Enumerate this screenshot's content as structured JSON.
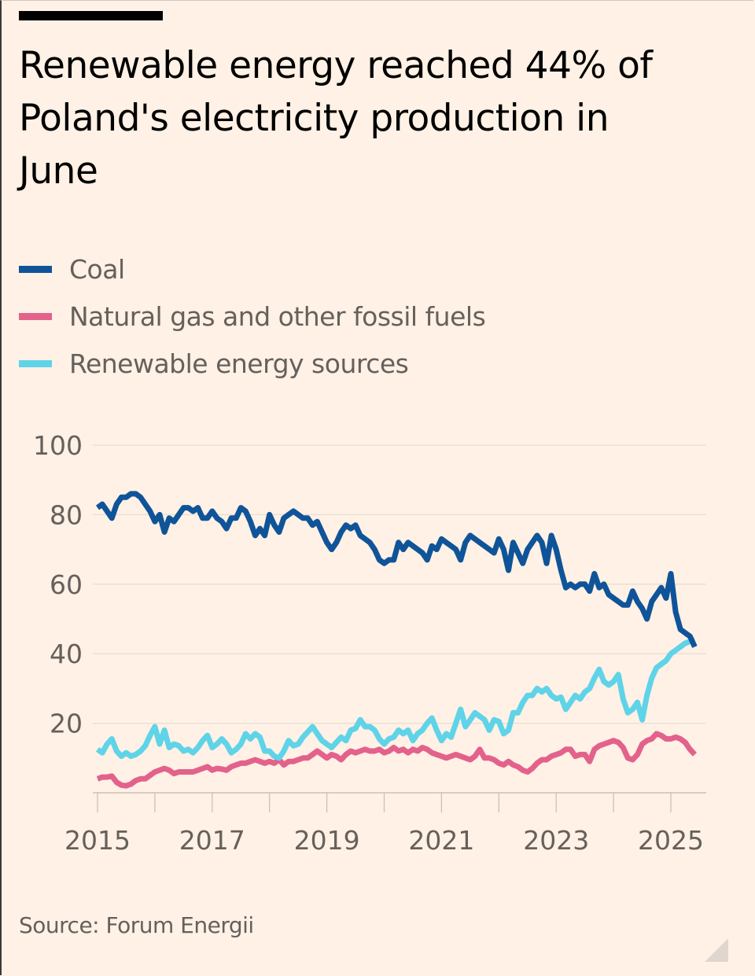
{
  "header": {
    "title": "Renewable energy reached 44% of Poland's electricity production in June"
  },
  "legend": [
    {
      "label": "Coal",
      "color": "#0f5499"
    },
    {
      "label": "Natural gas and other fossil fuels",
      "color": "#e3628c"
    },
    {
      "label": "Renewable energy sources",
      "color": "#5fd3e8"
    }
  ],
  "source": "Source: Forum Energii",
  "chart_data": {
    "type": "line",
    "title": "Renewable energy reached 44% of Poland's electricity production in June",
    "xlabel": "",
    "ylabel": "",
    "x_start": "2015-01",
    "x_end": "2025-06",
    "x_frequency": "monthly",
    "xlim": [
      2015,
      2025.6
    ],
    "ylim": [
      0,
      100
    ],
    "yticks": [
      20,
      40,
      60,
      80,
      100
    ],
    "xticks": [
      2015,
      2016,
      2017,
      2018,
      2019,
      2020,
      2021,
      2022,
      2023,
      2024,
      2025
    ],
    "xtick_labels": [
      "2015",
      "2017",
      "2019",
      "2021",
      "2023",
      "2025"
    ],
    "grid": true,
    "legend_position": "top-left",
    "series": [
      {
        "name": "Coal",
        "color": "#0f5499",
        "values": [
          82,
          83,
          81,
          79,
          83,
          85,
          85,
          86,
          86,
          85,
          83,
          81,
          78,
          80,
          75,
          79,
          78,
          80,
          82,
          82,
          81,
          82,
          79,
          79,
          81,
          79,
          78,
          76,
          79,
          79,
          82,
          81,
          78,
          74,
          76,
          74,
          80,
          77,
          75,
          79,
          80,
          81,
          80,
          79,
          79,
          77,
          78,
          75,
          72,
          70,
          72,
          75,
          77,
          76,
          77,
          74,
          73,
          72,
          70,
          67,
          66,
          67,
          67,
          72,
          70,
          72,
          71,
          70,
          69,
          67,
          71,
          70,
          73,
          72,
          71,
          70,
          67,
          72,
          74,
          73,
          72,
          71,
          70,
          69,
          73,
          70,
          64,
          72,
          69,
          66,
          70,
          72,
          74,
          72,
          66,
          74,
          70,
          64,
          59,
          60,
          59,
          60,
          60,
          58,
          63,
          59,
          60,
          57,
          56,
          55,
          54,
          54,
          58,
          55,
          53,
          50,
          55,
          57,
          59,
          56,
          63,
          52,
          47,
          46,
          45,
          42
        ]
      },
      {
        "name": "Natural gas and other fossil fuels",
        "color": "#e3628c",
        "values": [
          4,
          4.5,
          4.5,
          4.8,
          3,
          2.2,
          2,
          2.5,
          3.5,
          4,
          4,
          5,
          6,
          6.5,
          7,
          6.5,
          5.5,
          6,
          6,
          6,
          6,
          6.5,
          7,
          7.5,
          6.5,
          7,
          6.8,
          6.5,
          7.5,
          8,
          8.5,
          8.5,
          9,
          9.5,
          9,
          8.5,
          9,
          8.5,
          9.5,
          8,
          9,
          9,
          9.5,
          10,
          10,
          11,
          12,
          11,
          10,
          11,
          10.5,
          9.5,
          11,
          12,
          11.5,
          12,
          12.5,
          12,
          12,
          12.5,
          11.5,
          12,
          13,
          12,
          12.5,
          11.5,
          12.5,
          12,
          13,
          12.5,
          11.5,
          11,
          10.5,
          10,
          10.5,
          11,
          10.5,
          10,
          9.5,
          10.5,
          12.5,
          10,
          10,
          9.5,
          8.5,
          8,
          9,
          8,
          7.5,
          6.5,
          6,
          7,
          8.5,
          9.5,
          9.5,
          10.5,
          11,
          11.5,
          12.5,
          12.5,
          10.5,
          11,
          11,
          9,
          12.5,
          13.5,
          14,
          14.5,
          15,
          14.5,
          13,
          10,
          9.5,
          11,
          14,
          15,
          15.5,
          17,
          16.5,
          15.5,
          15.5,
          16,
          15.5,
          14.5,
          12.5,
          11
        ]
      },
      {
        "name": "Renewable energy sources",
        "color": "#5fd3e8",
        "values": [
          12.5,
          11.5,
          14,
          15.5,
          12,
          10.5,
          11.5,
          10.5,
          11,
          12,
          13.5,
          16.5,
          19,
          14,
          18,
          13,
          14,
          13.5,
          12,
          12.5,
          11.5,
          13,
          15,
          16.5,
          13,
          14,
          15.5,
          14,
          11.5,
          12.5,
          14,
          17,
          15.5,
          17,
          16,
          12,
          12,
          10.5,
          10,
          12,
          15,
          13.5,
          14,
          16,
          17.5,
          19,
          17,
          15,
          14,
          13,
          14.5,
          16,
          15,
          18,
          18.5,
          21,
          19,
          19,
          18,
          15.5,
          14,
          15.5,
          16,
          18,
          17,
          18,
          15,
          17,
          18,
          20,
          21.5,
          18,
          15,
          17,
          16,
          20,
          24,
          19,
          21,
          23,
          22,
          21,
          18,
          21,
          20.5,
          17,
          18,
          23,
          23,
          26,
          28,
          28,
          30,
          29,
          30,
          28,
          27,
          27.5,
          24,
          26,
          28,
          27,
          29,
          30,
          33,
          35.5,
          32,
          31,
          32,
          34,
          27,
          23,
          24,
          26,
          21,
          28,
          33,
          36,
          37,
          38,
          40,
          41,
          42,
          43,
          43.5,
          44
        ]
      }
    ]
  }
}
